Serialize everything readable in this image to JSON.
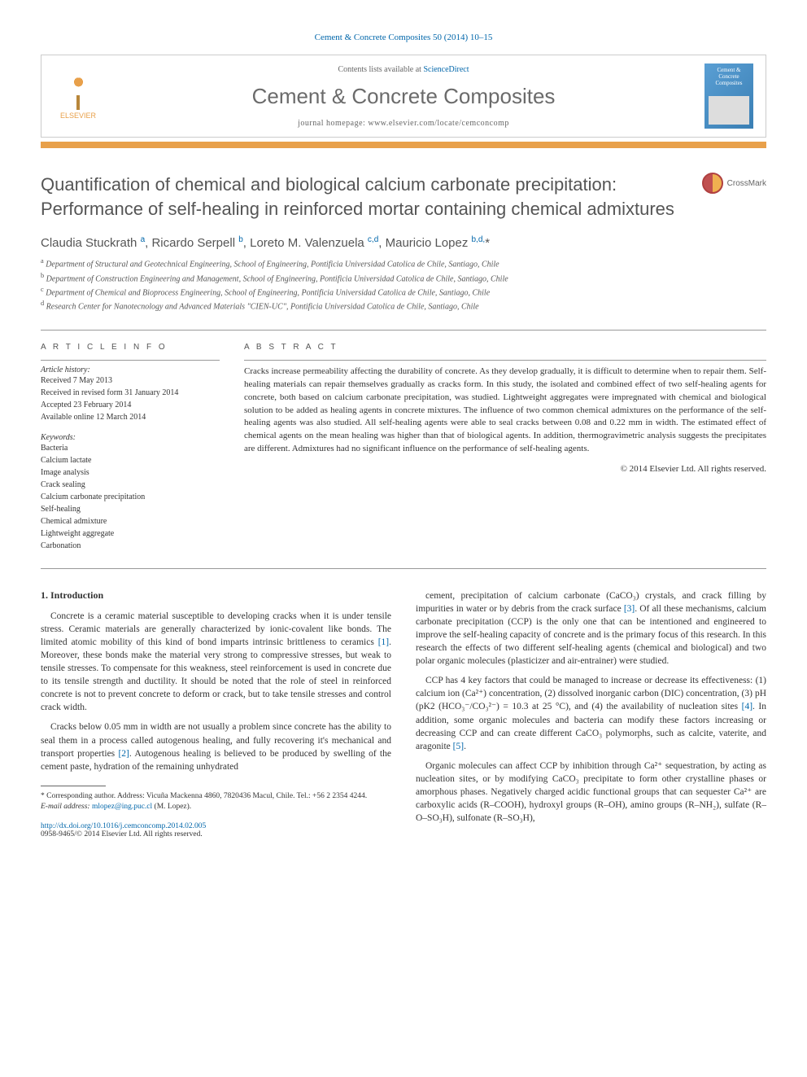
{
  "journal_ref": "Cement & Concrete Composites 50 (2014) 10–15",
  "header": {
    "elsevier": "ELSEVIER",
    "contents_prefix": "Contents lists available at ",
    "contents_link": "ScienceDirect",
    "journal_name": "Cement & Concrete Composites",
    "homepage_prefix": "journal homepage: ",
    "homepage_url": "www.elsevier.com/locate/cemconcomp",
    "cover_text": "Cement & Concrete Composites"
  },
  "crossmark": "CrossMark",
  "title": "Quantification of chemical and biological calcium carbonate precipitation: Performance of self-healing in reinforced mortar containing chemical admixtures",
  "authors_html": "Claudia Stuckrath <sup>a</sup>, Ricardo Serpell <sup>b</sup>, Loreto M. Valenzuela <sup>c,d</sup>, Mauricio Lopez <sup>b,d,</sup>*",
  "affiliations": [
    {
      "sup": "a",
      "text": "Department of Structural and Geotechnical Engineering, School of Engineering, Pontificia Universidad Catolica de Chile, Santiago, Chile"
    },
    {
      "sup": "b",
      "text": "Department of Construction Engineering and Management, School of Engineering, Pontificia Universidad Catolica de Chile, Santiago, Chile"
    },
    {
      "sup": "c",
      "text": "Department of Chemical and Bioprocess Engineering, School of Engineering, Pontificia Universidad Catolica de Chile, Santiago, Chile"
    },
    {
      "sup": "d",
      "text": "Research Center for Nanotecnology and Advanced Materials \"CIEN-UC\", Pontificia Universidad Catolica de Chile, Santiago, Chile"
    }
  ],
  "info": {
    "heading": "A R T I C L E   I N F O",
    "history_label": "Article history:",
    "history": [
      "Received 7 May 2013",
      "Received in revised form 31 January 2014",
      "Accepted 23 February 2014",
      "Available online 12 March 2014"
    ],
    "keywords_label": "Keywords:",
    "keywords": [
      "Bacteria",
      "Calcium lactate",
      "Image analysis",
      "Crack sealing",
      "Calcium carbonate precipitation",
      "Self-healing",
      "Chemical admixture",
      "Lightweight aggregate",
      "Carbonation"
    ]
  },
  "abstract": {
    "heading": "A B S T R A C T",
    "text": "Cracks increase permeability affecting the durability of concrete. As they develop gradually, it is difficult to determine when to repair them. Self-healing materials can repair themselves gradually as cracks form. In this study, the isolated and combined effect of two self-healing agents for concrete, both based on calcium carbonate precipitation, was studied. Lightweight aggregates were impregnated with chemical and biological solution to be added as healing agents in concrete mixtures. The influence of two common chemical admixtures on the performance of the self-healing agents was also studied. All self-healing agents were able to seal cracks between 0.08 and 0.22 mm in width. The estimated effect of chemical agents on the mean healing was higher than that of biological agents. In addition, thermogravimetric analysis suggests the precipitates are different. Admixtures had no significant influence on the performance of self-healing agents.",
    "copyright": "© 2014 Elsevier Ltd. All rights reserved."
  },
  "intro_heading": "1. Introduction",
  "left_col": [
    "Concrete is a ceramic material susceptible to developing cracks when it is under tensile stress. Ceramic materials are generally characterized by ionic-covalent like bonds. The limited atomic mobility of this kind of bond imparts intrinsic brittleness to ceramics [1]. Moreover, these bonds make the material very strong to compressive stresses, but weak to tensile stresses. To compensate for this weakness, steel reinforcement is used in concrete due to its tensile strength and ductility. It should be noted that the role of steel in reinforced concrete is not to prevent concrete to deform or crack, but to take tensile stresses and control crack width.",
    "Cracks below 0.05 mm in width are not usually a problem since concrete has the ability to seal them in a process called autogenous healing, and fully recovering it's mechanical and transport properties [2]. Autogenous healing is believed to be produced by swelling of the cement paste, hydration of the remaining unhydrated"
  ],
  "right_col": [
    "cement, precipitation of calcium carbonate (CaCO₃) crystals, and crack filling by impurities in water or by debris from the crack surface [3]. Of all these mechanisms, calcium carbonate precipitation (CCP) is the only one that can be intentioned and engineered to improve the self-healing capacity of concrete and is the primary focus of this research. In this research the effects of two different self-healing agents (chemical and biological) and two polar organic molecules (plasticizer and air-entrainer) were studied.",
    "CCP has 4 key factors that could be managed to increase or decrease its effectiveness: (1) calcium ion (Ca²⁺) concentration, (2) dissolved inorganic carbon (DIC) concentration, (3) pH (pK2 (HCO₃⁻/CO₃²⁻) = 10.3 at 25 °C), and (4) the availability of nucleation sites [4]. In addition, some organic molecules and bacteria can modify these factors increasing or decreasing CCP and can create different CaCO₃ polymorphs, such as calcite, vaterite, and aragonite [5].",
    "Organic molecules can affect CCP by inhibition through Ca²⁺ sequestration, by acting as nucleation sites, or by modifying CaCO₃ precipitate to form other crystalline phases or amorphous phases. Negatively charged acidic functional groups that can sequester Ca²⁺ are carboxylic acids (R–COOH), hydroxyl groups (R–OH), amino groups (R–NH₂), sulfate (R–O–SO₃H), sulfonate (R–SO₃H),"
  ],
  "footnote": {
    "corr_label": "* Corresponding author. Address: Vicuña Mackenna 4860, 7820436 Macul, Chile. Tel.: +56 2 2354 4244.",
    "email_label": "E-mail address: ",
    "email": "mlopez@ing.puc.cl",
    "email_suffix": " (M. Lopez)."
  },
  "doi": {
    "url": "http://dx.doi.org/10.1016/j.cemconcomp.2014.02.005",
    "issn_copyright": "0958-9465/© 2014 Elsevier Ltd. All rights reserved."
  },
  "colors": {
    "link": "#0066aa",
    "orange": "#e8a04a",
    "gray_text": "#555"
  }
}
